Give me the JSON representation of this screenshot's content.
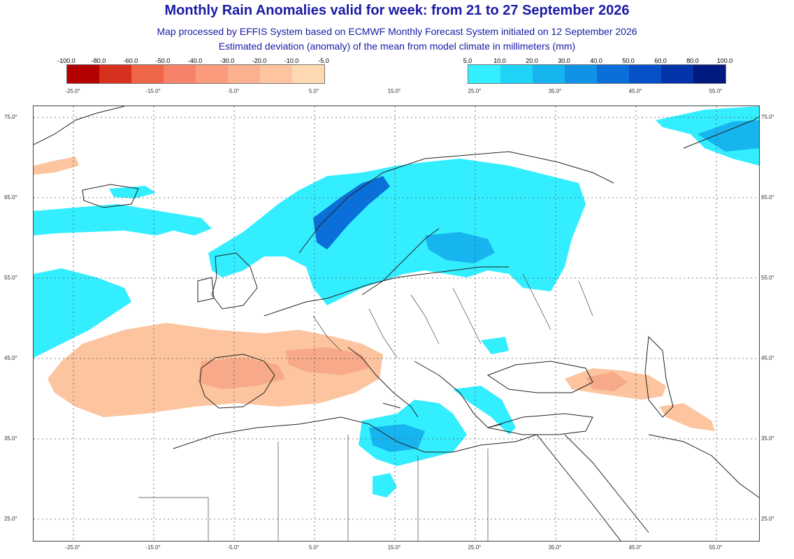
{
  "header": {
    "title": "Monthly Rain Anomalies valid for week: from 21 to 27 September 2026",
    "subtitle1": "Map processed by EFFIS System based on ECMWF Monthly Forecast System initiated on 12 September 2026",
    "subtitle2": "Estimated deviation (anomaly) of the mean from model climate in millimeters (mm)"
  },
  "legend": {
    "negative": {
      "labels": [
        "-100.0",
        "-80.0",
        "-60.0",
        "-50.0",
        "-40.0",
        "-30.0",
        "-20.0",
        "-10.0",
        "-5.0"
      ],
      "colors": [
        "#b30000",
        "#d7301f",
        "#ef6548",
        "#f7826a",
        "#f99b7c",
        "#fbb08f",
        "#fcc49f",
        "#fdd8b0"
      ]
    },
    "positive": {
      "labels": [
        "5.0",
        "10.0",
        "20.0",
        "30.0",
        "40.0",
        "50.0",
        "60.0",
        "80.0",
        "100.0"
      ],
      "colors": [
        "#33eeff",
        "#1fd3f7",
        "#17b5f0",
        "#1093e6",
        "#0a6fd9",
        "#0750c7",
        "#0433aa",
        "#011a80"
      ]
    }
  },
  "longitude_labels": [
    "-25.0°",
    "-15.0°",
    "-5.0°",
    "5.0°",
    "15.0°",
    "25.0°",
    "35.0°",
    "45.0°",
    "55.0°"
  ],
  "latitude_labels": [
    "75.0°",
    "65.0°",
    "55.0°",
    "45.0°",
    "35.0°",
    "25.0°"
  ],
  "colors": {
    "title": "#1a1aa6",
    "wet": "#33eeff",
    "wet_mid": "#17b5f0",
    "wet_strong": "#0a6fd9",
    "dry": "#fcc49f",
    "dry_mid": "#f7a98a",
    "coast": "#222222",
    "grid": "#555555"
  }
}
